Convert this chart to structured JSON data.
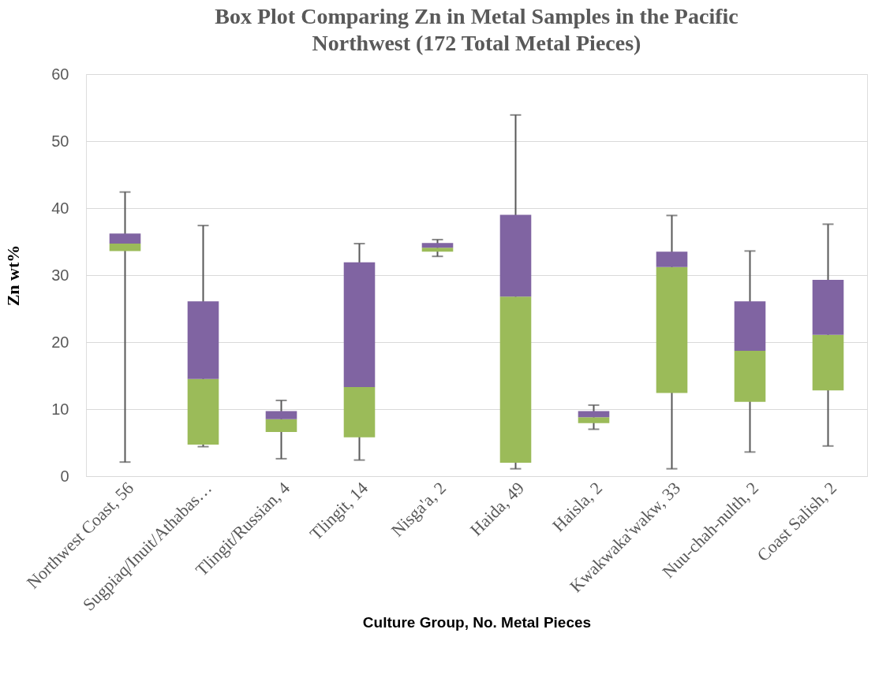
{
  "chart_data": {
    "type": "box",
    "title": "Box Plot Comparing Zn in Metal Samples in the Pacific Northwest (172 Total Metal Pieces)",
    "xlabel": "Culture Group, No. Metal Pieces",
    "ylabel": "Zn wt%",
    "categories": [
      "Northwest Coast, 56",
      "Sugpiaq/Inuit/Athabas…",
      "Tlingit/Russian, 4",
      "Tlingit, 14",
      "Nisga'a, 2",
      "Haida, 49",
      "Haisla, 2",
      "Kwakwaka'wakw, 33",
      "Nuu-chah-nulth, 2",
      "Coast Salish, 2"
    ],
    "boxes": [
      {
        "low": 2.1,
        "q1": 33.6,
        "median": 34.7,
        "q3": 36.2,
        "high": 42.4
      },
      {
        "low": 4.4,
        "q1": 4.7,
        "median": 14.5,
        "q3": 26.1,
        "high": 37.4
      },
      {
        "low": 2.6,
        "q1": 6.6,
        "median": 8.5,
        "q3": 9.7,
        "high": 11.3
      },
      {
        "low": 2.4,
        "q1": 5.8,
        "median": 13.3,
        "q3": 31.9,
        "high": 34.7
      },
      {
        "low": 32.8,
        "q1": 33.5,
        "median": 34.1,
        "q3": 34.8,
        "high": 35.3
      },
      {
        "low": 1.1,
        "q1": 2.0,
        "median": 26.8,
        "q3": 39.0,
        "high": 53.9
      },
      {
        "low": 7.0,
        "q1": 7.9,
        "median": 8.8,
        "q3": 9.7,
        "high": 10.6
      },
      {
        "low": 1.1,
        "q1": 12.4,
        "median": 31.2,
        "q3": 33.5,
        "high": 38.9
      },
      {
        "low": 3.6,
        "q1": 11.1,
        "median": 18.7,
        "q3": 26.1,
        "high": 33.6
      },
      {
        "low": 4.5,
        "q1": 12.8,
        "median": 21.1,
        "q3": 29.3,
        "high": 37.6
      }
    ],
    "ylim": [
      0,
      60
    ],
    "yticks": [
      0,
      10,
      20,
      30,
      40,
      50,
      60
    ],
    "grid": "y"
  }
}
